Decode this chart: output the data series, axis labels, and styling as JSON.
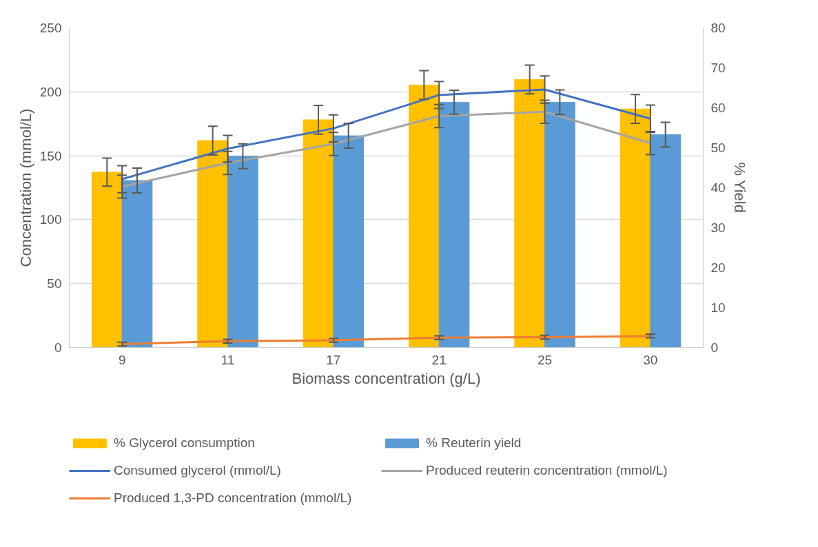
{
  "chart_data": {
    "type": "bar",
    "xlabel": "Biomass concentration (g/L)",
    "ylabel": "Concentration (mmol/L)",
    "y2label": "% Yield",
    "categories": [
      "9",
      "11",
      "17",
      "21",
      "25",
      "30"
    ],
    "series": [
      {
        "name": "% Glycerol consumption",
        "axis": "y2",
        "color": "#ffc000",
        "values": [
          43.9,
          51.8,
          57.0,
          65.7,
          67.1,
          59.7
        ],
        "errors": [
          3.5,
          3.6,
          3.6,
          3.6,
          3.6,
          3.6
        ]
      },
      {
        "name": "% Reuterin yield",
        "axis": "y2",
        "color": "#5b9bd5",
        "values": [
          41.8,
          47.9,
          53.0,
          61.4,
          61.4,
          53.3
        ],
        "errors": [
          3.1,
          3.1,
          3.1,
          3.0,
          3.1,
          3.1
        ]
      },
      {
        "name": "Consumed glycerol (mmol/L)",
        "type": "line",
        "color": "#4472c4",
        "values": [
          131.7,
          155.6,
          171.4,
          197.5,
          201.8,
          179.0
        ],
        "errors": [
          10.6,
          10.4,
          10.6,
          10.6,
          10.6,
          10.6
        ]
      },
      {
        "name": "Produced reuterin concentration (mmol/L)",
        "type": "line",
        "color": "#a5a5a5",
        "values": [
          125.9,
          144.4,
          159.2,
          181.0,
          184.4,
          159.9
        ],
        "errors": [
          9,
          9,
          9,
          9,
          9,
          9
        ]
      },
      {
        "name": "Produced 1,3-PD concentration (mmol/L)",
        "type": "line",
        "color": "#ed7d31",
        "values": [
          2.7,
          5.0,
          5.7,
          7.7,
          8.1,
          9.0
        ],
        "errors": [
          1.5,
          1.5,
          1.5,
          1.5,
          1.5,
          1.5
        ]
      }
    ],
    "ylim": [
      0,
      250
    ],
    "yticks": [
      0,
      50,
      100,
      150,
      200,
      250
    ],
    "y2lim": [
      0,
      80
    ],
    "y2ticks": [
      0,
      10,
      20,
      30,
      40,
      50,
      60,
      70,
      80
    ],
    "grid": "y",
    "legend": "bottom",
    "marker": "none",
    "line_style": "solid"
  }
}
